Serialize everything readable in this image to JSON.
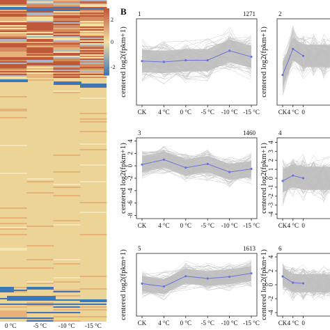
{
  "panel_letter": "B",
  "heatmap": {
    "columns": [
      "0 °C",
      "-5 °C",
      "-10 °C",
      "-15 °C"
    ],
    "legend_ticks": [
      "2",
      "0",
      "-2"
    ],
    "colors": {
      "high": "#c0583a",
      "mid": "#f2dfa2",
      "low": "#3d77b8",
      "base": "#ecd497"
    }
  },
  "chart_data": [
    {
      "type": "line",
      "panel": "1",
      "count": "1271",
      "ylabel": "centered log2(fpkm+1)",
      "categories": [
        "CK",
        "4 °C",
        "0 °C",
        "-5 °C",
        "-10 °C",
        "-15 °C"
      ],
      "series": [
        {
          "values": [
            -0.4,
            -0.5,
            -0.3,
            -0.3,
            0.8,
            0.1
          ]
        }
      ],
      "ylim": [
        -5.5,
        4.5
      ],
      "yticks": [],
      "line_color": "#6b73d8",
      "band_color": "#c8c8c8"
    },
    {
      "type": "line",
      "panel": "2",
      "count": "",
      "ylabel": "centered log2(fpkm+1)",
      "categories": [
        "CK",
        "4 °C",
        "0"
      ],
      "series": [
        {
          "values": [
            -2.0,
            1.0,
            0.2
          ]
        }
      ],
      "ylim": [
        -5.5,
        4.5
      ],
      "yticks": [],
      "line_color": "#6b73d8",
      "band_color": "#c8c8c8"
    },
    {
      "type": "line",
      "panel": "3",
      "count": "1460",
      "ylabel": "centered log2(fpkm+1)",
      "categories": [
        "CK",
        "4 °C",
        "0 °C",
        "-5 °C",
        "-10 °C",
        "-15 °C"
      ],
      "series": [
        {
          "values": [
            0.2,
            1.0,
            -0.3,
            0.3,
            -1.0,
            -0.5
          ]
        }
      ],
      "ylim": [
        -8.5,
        4.5
      ],
      "yticks": [
        "4",
        "2",
        "0",
        "-2",
        "-4",
        "-6",
        "-8"
      ],
      "line_color": "#6b73d8",
      "band_color": "#c8c8c8"
    },
    {
      "type": "line",
      "panel": "4",
      "count": "",
      "ylabel": "centered log2(fpkm+1)",
      "categories": [
        "CK",
        "4 °C",
        "0"
      ],
      "series": [
        {
          "values": [
            -0.3,
            0.3,
            0.0
          ]
        }
      ],
      "ylim": [
        -4.5,
        4.5
      ],
      "yticks": [
        "4",
        "3",
        "2",
        "1",
        "0",
        "-1",
        "-2",
        "-3",
        "-4"
      ],
      "line_color": "#6b73d8",
      "band_color": "#c8c8c8"
    },
    {
      "type": "line",
      "panel": "5",
      "count": "1613",
      "ylabel": "centered log2(fpkm+1)",
      "categories": [
        "CK",
        "4 °C",
        "0 °C",
        "-5 °C",
        "-10 °C",
        "-15 °C"
      ],
      "series": [
        {
          "values": [
            -0.8,
            -1.3,
            0.5,
            0.1,
            0.4,
            1.0
          ]
        }
      ],
      "ylim": [
        -6.5,
        4.5
      ],
      "yticks": [],
      "line_color": "#6b73d8",
      "band_color": "#c8c8c8"
    },
    {
      "type": "line",
      "panel": "6",
      "count": "",
      "ylabel": "centered log2(fpkm+1)",
      "categories": [
        "CK",
        "4 °C",
        "0"
      ],
      "series": [
        {
          "values": [
            1.2,
            0.3,
            0.2
          ]
        }
      ],
      "ylim": [
        -4.5,
        4.5
      ],
      "yticks": [
        "4",
        "2",
        "0",
        "-2",
        "-4"
      ],
      "line_color": "#6b73d8",
      "band_color": "#c8c8c8"
    }
  ]
}
